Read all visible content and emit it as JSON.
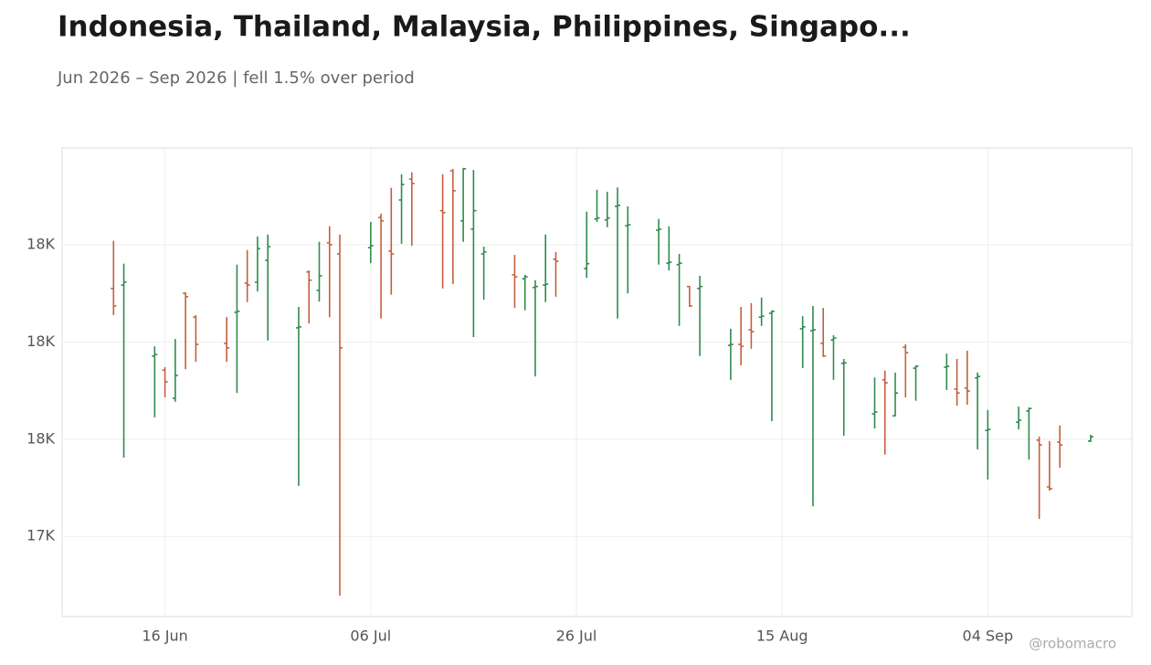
{
  "chart_data": {
    "type": "ohlc",
    "title": "Indonesia, Thailand, Malaysia, Philippines, Singapo...",
    "subtitle": "Jun 2026 – Sep 2026 | fell 1.5% over period",
    "watermark": "@robomacro",
    "up_color": "#2e8b4e",
    "down_color": "#c45f3c",
    "grid": true,
    "x": [
      "06-11",
      "06-12",
      "06-15",
      "06-16",
      "06-17",
      "06-18",
      "06-19",
      "06-22",
      "06-23",
      "06-24",
      "06-25",
      "06-26",
      "06-29",
      "06-30",
      "07-01",
      "07-02",
      "07-03",
      "07-06",
      "07-07",
      "07-08",
      "07-09",
      "07-10",
      "07-13",
      "07-14",
      "07-15",
      "07-16",
      "07-17",
      "07-20",
      "07-21",
      "07-22",
      "07-23",
      "07-24",
      "07-27",
      "07-28",
      "07-29",
      "07-30",
      "07-31",
      "08-03",
      "08-04",
      "08-05",
      "08-06",
      "08-07",
      "08-10",
      "08-11",
      "08-12",
      "08-13",
      "08-14",
      "08-17",
      "08-18",
      "08-19",
      "08-20",
      "08-21",
      "08-24",
      "08-25",
      "08-26",
      "08-27",
      "08-28",
      "08-31",
      "09-01",
      "09-02",
      "09-03",
      "09-04",
      "09-07",
      "09-08",
      "09-09",
      "09-10",
      "09-11",
      "09-14"
    ],
    "open": [
      17910,
      17917,
      17771,
      17742,
      17684,
      17900,
      17851,
      17797,
      17861,
      17921,
      17923,
      17968,
      17829,
      17944,
      17906,
      18004,
      17981,
      17994,
      18056,
      17987,
      18092,
      18135,
      18070,
      18152,
      18049,
      18032,
      17981,
      17938,
      17930,
      17912,
      17917,
      17970,
      17951,
      18053,
      18051,
      18079,
      18039,
      18030,
      17962,
      17959,
      17914,
      17910,
      17793,
      17795,
      17825,
      17851,
      17859,
      17827,
      17823,
      17797,
      17804,
      17756,
      17652,
      17722,
      17648,
      17789,
      17746,
      17748,
      17703,
      17705,
      17726,
      17618,
      17635,
      17658,
      17598,
      17502,
      17594,
      17596
    ],
    "high": [
      18008,
      17961,
      17791,
      17748,
      17806,
      17902,
      17855,
      17851,
      17959,
      17989,
      18017,
      18021,
      17872,
      17947,
      18006,
      18038,
      18021,
      18047,
      18064,
      18117,
      18145,
      18149,
      18145,
      18156,
      18158,
      18154,
      17996,
      17979,
      17938,
      17927,
      18021,
      17985,
      18068,
      18113,
      18109,
      18118,
      18079,
      18053,
      18038,
      17981,
      17915,
      17936,
      17827,
      17872,
      17880,
      17891,
      17865,
      17853,
      17874,
      17870,
      17814,
      17765,
      17727,
      17741,
      17737,
      17795,
      17752,
      17776,
      17765,
      17782,
      17737,
      17660,
      17667,
      17665,
      17605,
      17596,
      17628,
      17609
    ],
    "low": [
      17855,
      17562,
      17645,
      17686,
      17677,
      17744,
      17759,
      17759,
      17695,
      17882,
      17904,
      17803,
      17504,
      17838,
      17883,
      17851,
      17278,
      17962,
      17848,
      17897,
      18002,
      17998,
      17910,
      17919,
      18006,
      17810,
      17887,
      17870,
      17865,
      17729,
      17882,
      17893,
      17932,
      18047,
      18036,
      17848,
      17900,
      17959,
      17947,
      17833,
      17872,
      17771,
      17722,
      17752,
      17786,
      17833,
      17637,
      17746,
      17462,
      17769,
      17722,
      17607,
      17622,
      17568,
      17647,
      17686,
      17679,
      17701,
      17669,
      17671,
      17579,
      17517,
      17620,
      17558,
      17436,
      17494,
      17541,
      17594
    ],
    "close": [
      17874,
      17923,
      17774,
      17718,
      17731,
      17893,
      17795,
      17788,
      17863,
      17917,
      17992,
      17996,
      17831,
      17927,
      17936,
      18000,
      17788,
      17998,
      18049,
      17981,
      18124,
      18126,
      18066,
      18111,
      18156,
      18070,
      17985,
      17934,
      17934,
      17914,
      17919,
      17966,
      17961,
      18055,
      18055,
      18081,
      18041,
      18032,
      17964,
      17962,
      17874,
      17914,
      17795,
      17791,
      17821,
      17853,
      17863,
      17831,
      17825,
      17771,
      17808,
      17757,
      17656,
      17716,
      17695,
      17778,
      17750,
      17750,
      17695,
      17699,
      17729,
      17620,
      17639,
      17663,
      17588,
      17498,
      17588,
      17605
    ],
    "ylim": [
      17235,
      18199
    ],
    "yticks": [
      {
        "value": 17400,
        "label": "17K"
      },
      {
        "value": 17600,
        "label": "18K"
      },
      {
        "value": 17800,
        "label": "18K"
      },
      {
        "value": 18000,
        "label": "18K"
      }
    ],
    "xticks": [
      {
        "value": "06-16",
        "label": "16 Jun"
      },
      {
        "value": "07-06",
        "label": "06 Jul"
      },
      {
        "value": "07-26",
        "label": "26 Jul"
      },
      {
        "value": "08-15",
        "label": "15 Aug"
      },
      {
        "value": "09-04",
        "label": "04 Sep"
      }
    ]
  }
}
